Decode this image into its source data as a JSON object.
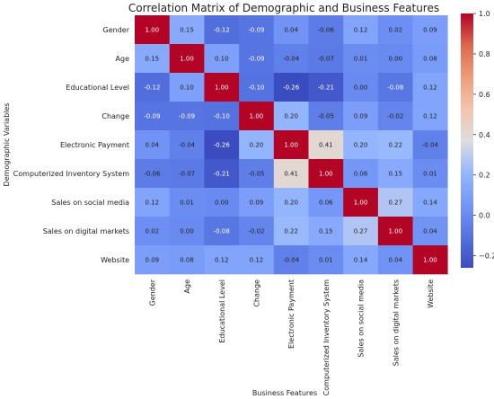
{
  "chart_data": {
    "type": "heatmap",
    "title": "Correlation Matrix of Demographic and Business Features",
    "xlabel": "Business Features",
    "ylabel": "Demographic Variables",
    "rows": [
      "Gender",
      "Age",
      "Educational Level",
      "Change",
      "Electronic Payment",
      "Computerized Inventory System",
      "Sales on social media",
      "Sales on digital markets",
      "Website"
    ],
    "columns": [
      "Gender",
      "Age",
      "Educational Level",
      "Change",
      "Electronic Payment",
      "Computerized Inventory System",
      "Sales on social media",
      "Sales on digital markets",
      "Website"
    ],
    "values": [
      [
        1.0,
        0.15,
        -0.12,
        -0.09,
        0.04,
        -0.06,
        0.12,
        0.02,
        0.09
      ],
      [
        0.15,
        1.0,
        0.1,
        -0.09,
        -0.04,
        -0.07,
        0.01,
        0.0,
        0.08
      ],
      [
        -0.12,
        0.1,
        1.0,
        -0.1,
        -0.26,
        -0.21,
        0.0,
        -0.08,
        0.12
      ],
      [
        -0.09,
        -0.09,
        -0.1,
        1.0,
        0.2,
        -0.05,
        0.09,
        -0.02,
        0.12
      ],
      [
        0.04,
        -0.04,
        -0.26,
        0.2,
        1.0,
        0.41,
        0.2,
        0.22,
        -0.04
      ],
      [
        -0.06,
        -0.07,
        -0.21,
        -0.05,
        0.41,
        1.0,
        0.06,
        0.15,
        0.01
      ],
      [
        0.12,
        0.01,
        0.0,
        0.09,
        0.2,
        0.06,
        1.0,
        0.27,
        0.14
      ],
      [
        0.02,
        0.0,
        -0.08,
        -0.02,
        0.22,
        0.15,
        0.27,
        1.0,
        0.04
      ],
      [
        0.09,
        0.08,
        0.12,
        0.12,
        -0.04,
        0.01,
        0.14,
        0.04,
        1.0
      ]
    ],
    "colormap": "coolwarm",
    "vmin": -0.26,
    "vmax": 1.0,
    "colorbar_ticks": [
      "1.0",
      "0.8",
      "0.6",
      "0.4",
      "0.2",
      "0.0",
      "−0.2"
    ]
  }
}
